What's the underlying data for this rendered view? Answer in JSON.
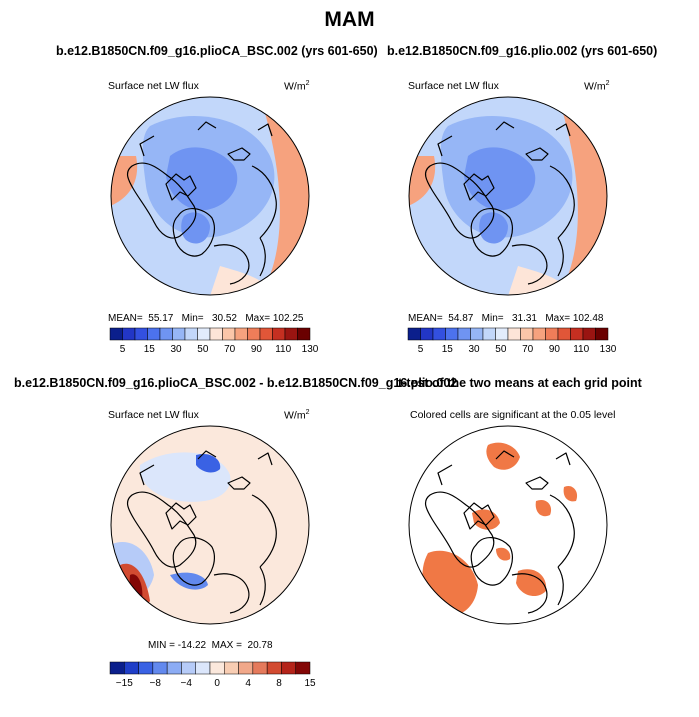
{
  "main_title": "MAM",
  "colors": {
    "coast": "#000000",
    "sig": "#f07845",
    "abs_scale": [
      "#0b1f8c",
      "#2236c6",
      "#3350e0",
      "#4c72ee",
      "#6f94f2",
      "#96b6f6",
      "#c2d7fa",
      "#e2ecfc",
      "#fde5d8",
      "#fbc6a9",
      "#f6a27e",
      "#ef7d59",
      "#e15638",
      "#c52f21",
      "#9a1411",
      "#6a0000"
    ],
    "diff_scale": [
      "#0b1f8c",
      "#1f3ec8",
      "#3a62e4",
      "#6289ee",
      "#8cacf4",
      "#b6cbf8",
      "#dbe6fb",
      "#fbe8dc",
      "#f8cdb3",
      "#f1a88a",
      "#e57a5c",
      "#d24b31",
      "#b4241a",
      "#830706"
    ]
  },
  "chart_data": [
    {
      "type": "heatmap",
      "projection": "polar-stereographic",
      "title": "b.e12.B1850CN.f09_g16.plioCA_BSC.002 (yrs 601-650)",
      "left_string": "Surface net LW flux",
      "right_string": "W/m",
      "units_sup": "2",
      "stats": {
        "mean_label": "MEAN=",
        "mean": "55.17",
        "min_label": "Min=",
        "min": "30.52",
        "max_label": "Max=",
        "max": "102.25"
      },
      "colorbar_ticks": [
        "5",
        "15",
        "30",
        "50",
        "70",
        "90",
        "110",
        "130"
      ]
    },
    {
      "type": "heatmap",
      "projection": "polar-stereographic",
      "title": "b.e12.B1850CN.f09_g16.plio.002 (yrs 601-650)",
      "left_string": "Surface net LW flux",
      "right_string": "W/m",
      "units_sup": "2",
      "stats": {
        "mean_label": "MEAN=",
        "mean": "54.87",
        "min_label": "Min=",
        "min": "31.31",
        "max_label": "Max=",
        "max": "102.48"
      },
      "colorbar_ticks": [
        "5",
        "15",
        "30",
        "50",
        "70",
        "90",
        "110",
        "130"
      ]
    },
    {
      "type": "heatmap",
      "projection": "polar-stereographic",
      "title": "b.e12.B1850CN.f09_g16.plioCA_BSC.002 - b.e12.B1850CN.f09_g16.plio.002",
      "left_string": "Surface net LW flux",
      "right_string": "W/m",
      "units_sup": "2",
      "stats": {
        "min_label": "MIN =",
        "min": "-14.22",
        "max_label": "MAX =",
        "max": "20.78"
      },
      "colorbar_ticks": [
        "−15",
        "−8",
        "−4",
        "0",
        "4",
        "8",
        "15"
      ]
    },
    {
      "type": "heatmap",
      "projection": "polar-stereographic",
      "title": "t-test of the two means at each grid point",
      "left_string": "Colored cells are significant at the 0.05 level"
    }
  ]
}
